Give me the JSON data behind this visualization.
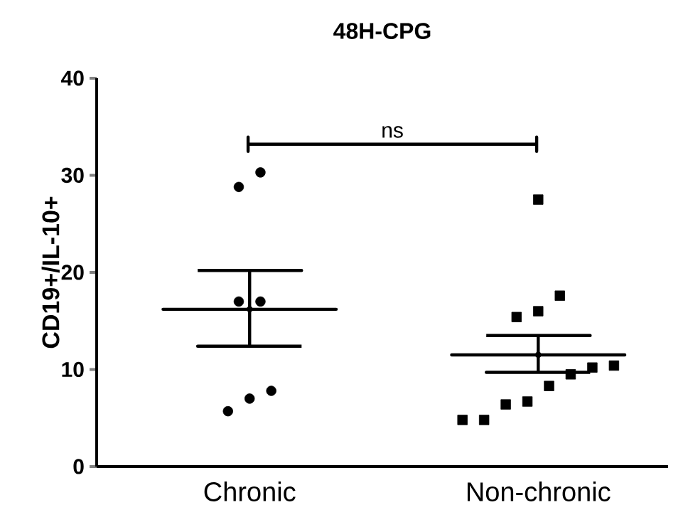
{
  "chart_data": {
    "type": "scatter",
    "title": "48H-CPG",
    "ylabel": "CD19+/IL-10+",
    "categories": [
      "Chronic",
      "Non-chronic"
    ],
    "ylim": [
      0,
      40
    ],
    "yticks": [
      0,
      10,
      20,
      30,
      40
    ],
    "annotations": [
      "ns"
    ],
    "series": [
      {
        "type": "scatter",
        "color": "#000000",
        "marker": "circle",
        "x": [
          "Chronic",
          "Chronic",
          "Chronic",
          "Chronic",
          "Chronic",
          "Chronic",
          "Chronic"
        ],
        "values": [
          30.3,
          28.8,
          17.0,
          17.0,
          7.8,
          5.7,
          7.0
        ]
      },
      {
        "type": "scatter",
        "color": "#000000",
        "marker": "square",
        "x": [
          "Non-chronic",
          "Non-chronic",
          "Non-chronic",
          "Non-chronic",
          "Non-chronic",
          "Non-chronic",
          "Non-chronic",
          "Non-chronic",
          "Non-chronic",
          "Non-chronic",
          "Non-chronic",
          "Non-chronic"
        ],
        "values": [
          27.5,
          17.6,
          15.4,
          16.0,
          10.2,
          9.5,
          8.3,
          10.4,
          6.4,
          6.7,
          4.8,
          4.8
        ]
      },
      {
        "type": "scatter",
        "color": "#000000",
        "x": [
          "Chronic",
          "Non-chronic"
        ],
        "values": [
          16.2,
          11.5
        ],
        "errors": [
          [
            12.4,
            20.2
          ],
          [
            9.7,
            13.5
          ]
        ]
      }
    ]
  }
}
